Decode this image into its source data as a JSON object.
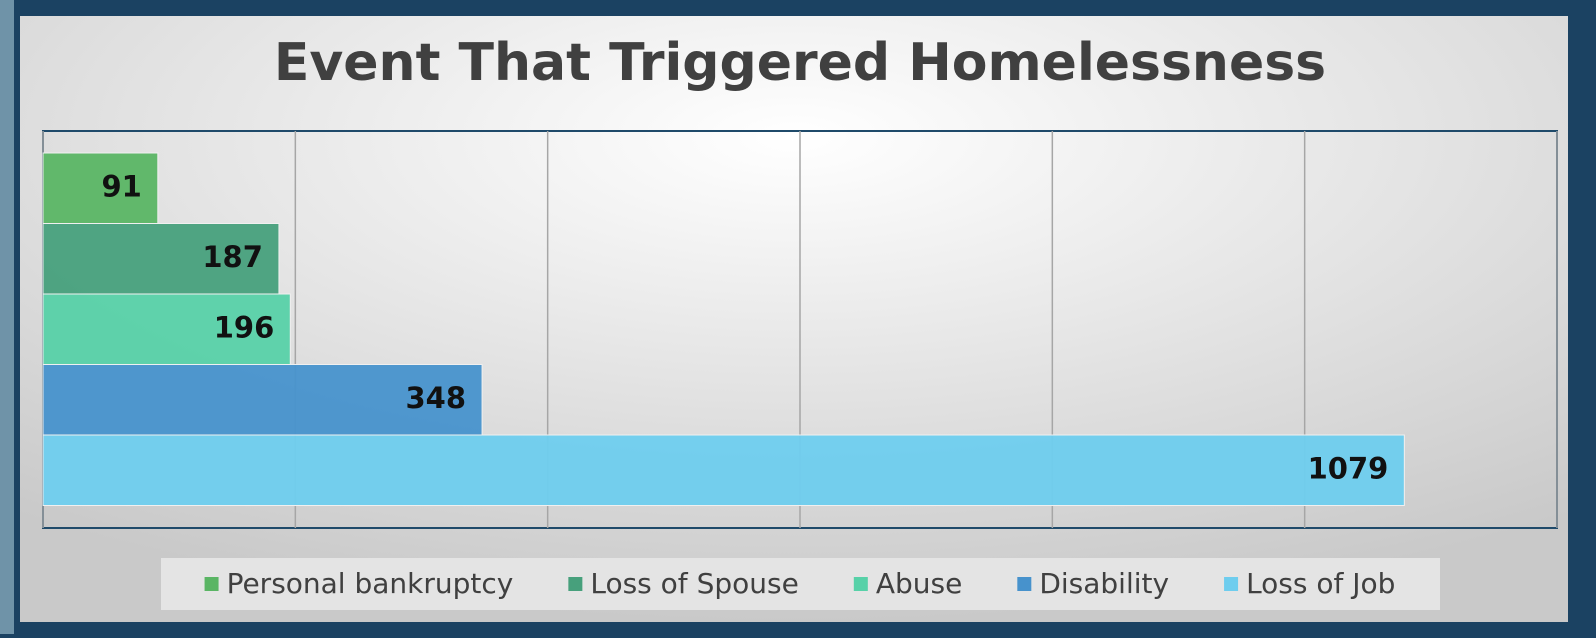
{
  "chart_data": {
    "type": "bar",
    "orientation": "horizontal",
    "title": "Event That Triggered Homelessness",
    "series": [
      {
        "name": "Personal bankruptcy",
        "color": "#5ab564",
        "values": [
          91
        ]
      },
      {
        "name": "Loss of Spouse",
        "color": "#47a07c",
        "values": [
          187
        ]
      },
      {
        "name": "Abuse",
        "color": "#57d1a8",
        "values": [
          196
        ]
      },
      {
        "name": "Disability",
        "color": "#4792cc",
        "values": [
          348
        ]
      },
      {
        "name": "Loss of Job",
        "color": "#6ecdee",
        "values": [
          1079
        ]
      }
    ],
    "xlim": [
      0,
      1200
    ],
    "xticks": [
      0,
      200,
      400,
      600,
      800,
      1000,
      1200
    ],
    "grid": true,
    "legend": "bottom"
  }
}
